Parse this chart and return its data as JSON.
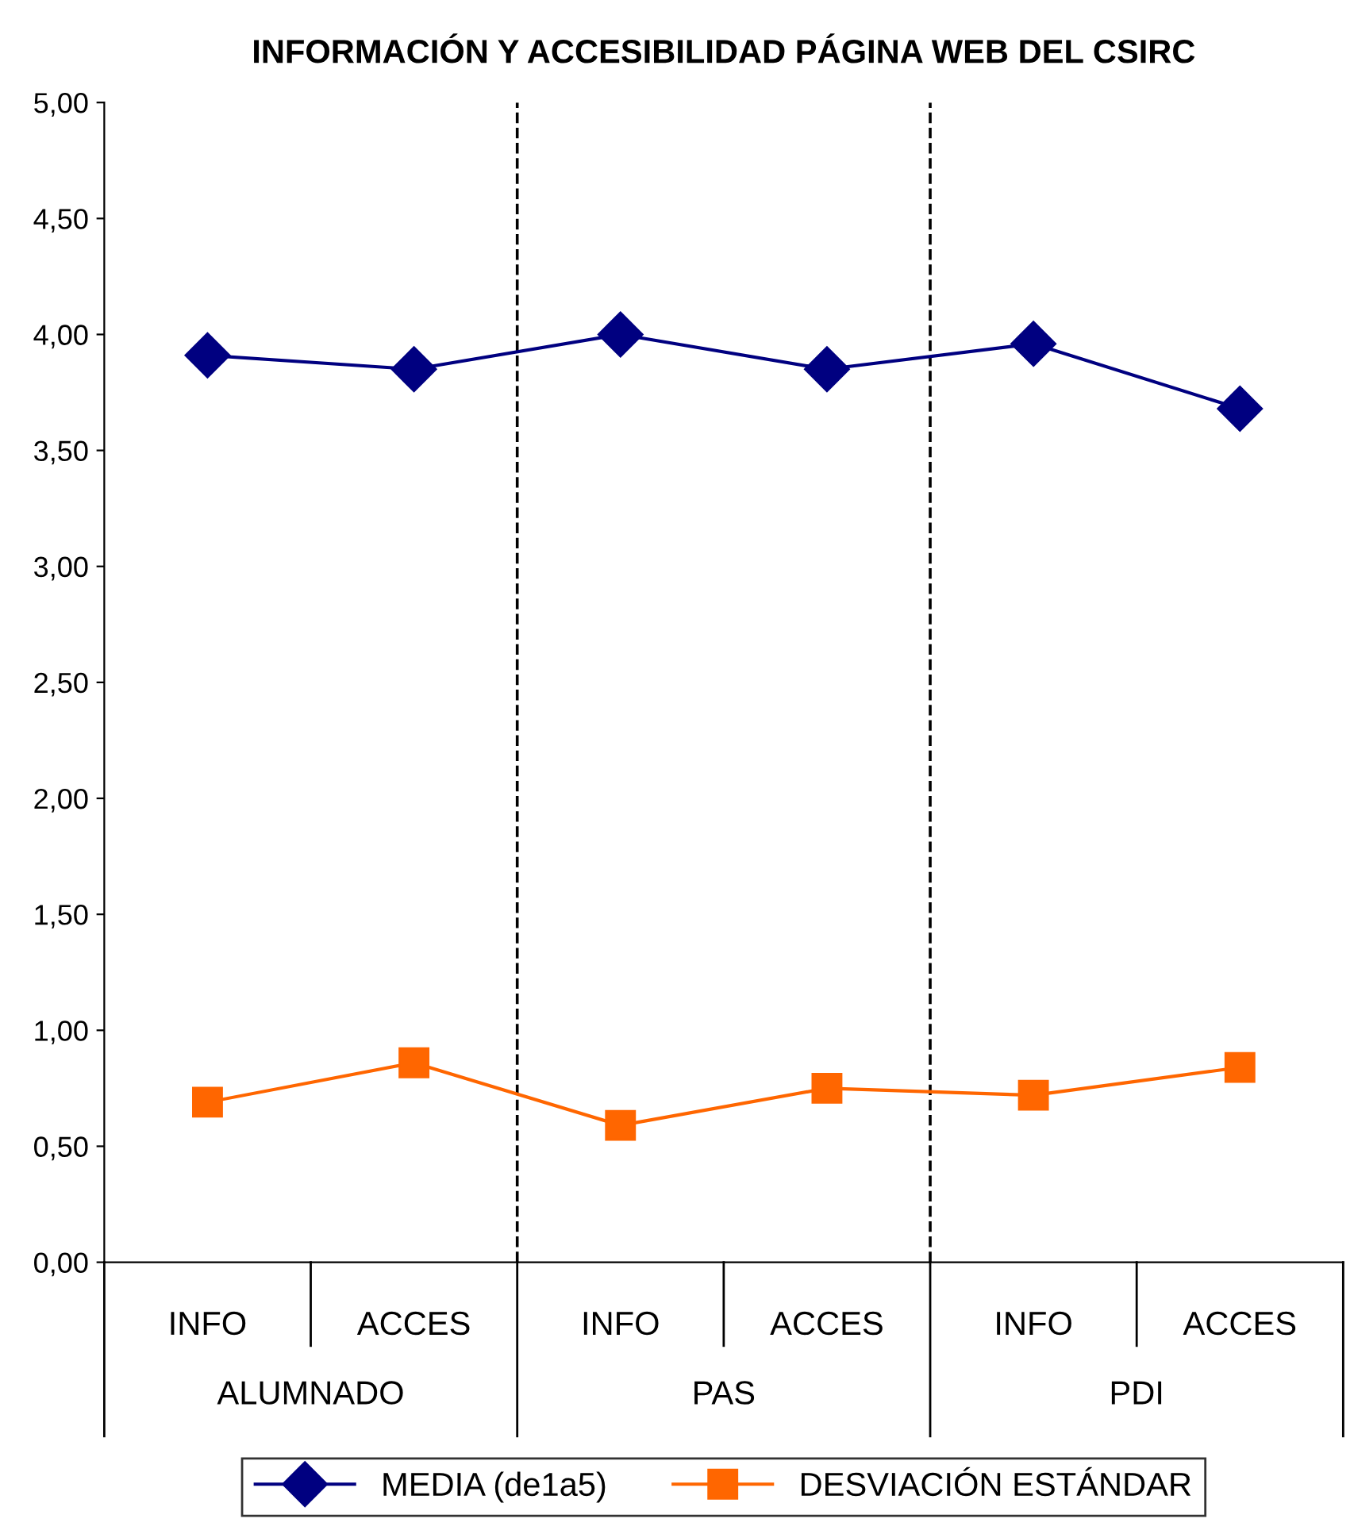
{
  "chart_data": {
    "type": "line",
    "title": "INFORMACIÓN Y ACCESIBILIDAD PÁGINA WEB DEL CSIRC",
    "categories": [
      "INFO",
      "ACCES",
      "INFO",
      "ACCES",
      "INFO",
      "ACCES"
    ],
    "series": [
      {
        "name": "MEDIA (de1a5)",
        "color": "#000080",
        "values": [
          3.91,
          3.85,
          4.0,
          3.85,
          3.96,
          3.68
        ],
        "marker": "diamond"
      },
      {
        "name": "DESVIACIÓN ESTÁNDAR",
        "color": "#ff6600",
        "values": [
          0.69,
          0.86,
          0.59,
          0.75,
          0.72,
          0.84
        ],
        "marker": "square"
      }
    ],
    "ylim": [
      0,
      5
    ],
    "yticks": [
      {
        "value": 0,
        "label": "0,00"
      },
      {
        "value": 0.5,
        "label": "0,50"
      },
      {
        "value": 1,
        "label": "1,00"
      },
      {
        "value": 1.5,
        "label": "1,50"
      },
      {
        "value": 2,
        "label": "2,00"
      },
      {
        "value": 2.5,
        "label": "2,50"
      },
      {
        "value": 3,
        "label": "3,00"
      },
      {
        "value": 3.5,
        "label": "3,50"
      },
      {
        "value": 4,
        "label": "4,00"
      },
      {
        "value": 4.5,
        "label": "4,50"
      },
      {
        "value": 5,
        "label": "5,00"
      }
    ],
    "annotations": [
      "ALUMNADO",
      "PAS",
      "PDI"
    ],
    "grid": false,
    "legend": "bottom"
  }
}
